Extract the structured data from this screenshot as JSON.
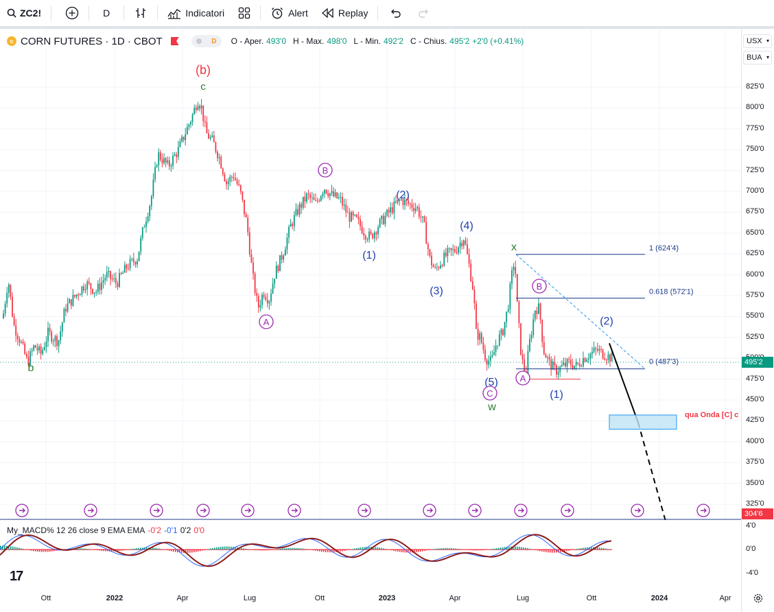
{
  "toolbar": {
    "symbol": "ZC2!",
    "interval": "D",
    "indicators_label": "Indicatori",
    "alert_label": "Alert",
    "replay_label": "Replay"
  },
  "legend": {
    "title": "CORN FUTURES · 1D · CBOT",
    "exchange_badge": "D",
    "open_label": "O - Aper.",
    "open": "493'0",
    "high_label": "H - Max.",
    "high": "498'0",
    "low_label": "L - Min.",
    "low": "492'2",
    "close_label": "C - Chius.",
    "close": "495'2",
    "change": "+2'0 (+0.41%)"
  },
  "right_axis": {
    "unit": "USX",
    "bushel": "BUA",
    "price_ticks": [
      "825'0",
      "800'0",
      "775'0",
      "750'0",
      "725'0",
      "700'0",
      "675'0",
      "650'0",
      "625'0",
      "600'0",
      "575'0",
      "550'0",
      "525'0",
      "500'0",
      "475'0",
      "450'0",
      "425'0",
      "400'0",
      "375'0",
      "350'0",
      "325'0"
    ],
    "last_price": "495'2",
    "crosshair_price": "304'6",
    "macd_ticks": [
      "4'0",
      "0'0",
      "-4'0"
    ]
  },
  "time_axis": {
    "ticks": [
      "Ott",
      "2022",
      "Apr",
      "Lug",
      "Ott",
      "2023",
      "Apr",
      "Lug",
      "Ott",
      "2024",
      "Apr"
    ]
  },
  "macd": {
    "name": "My_MACD% 12 26 close 9 EMA EMA",
    "v1": "-0'2",
    "v2": "-0'1",
    "v3": "0'2",
    "v4": "0'0"
  },
  "annotations": {
    "wave_b_top": "(b)",
    "wave_c_top": "c",
    "wave_b_low": "b",
    "circled_A1": "A",
    "circled_B1": "B",
    "wave_1a": "(1)",
    "wave_2a": "(2)",
    "wave_3a": "(3)",
    "wave_4a": "(4)",
    "wave_5a": "(5)",
    "circled_C": "C",
    "wave_w": "w",
    "wave_x": "x",
    "circled_A2": "A",
    "circled_B2": "B",
    "wave_1b": "(1)",
    "wave_2b": "(2)",
    "fib_1": "1 (624'4)",
    "fib_0618": "0.618 (572'1)",
    "fib_0": "0 (487'3)",
    "target_note": "qua Onda [C] c"
  },
  "colors": {
    "up": "#089981",
    "down": "#f23645",
    "wave_red": "#f23645",
    "wave_green": "#2e7d32",
    "wave_blue": "#1e40af",
    "circle_purple": "#9c27b0",
    "fib_line": "#1e3a8a",
    "box_fill": "#bfe3f5",
    "box_border": "#2196f3"
  },
  "icons": [
    "search-icon",
    "add-symbol-icon",
    "bar-style-icon",
    "indicators-icon",
    "layout-icon",
    "alert-icon",
    "replay-icon",
    "undo-icon",
    "redo-icon",
    "settings-icon",
    "event-arrow-icon"
  ]
}
